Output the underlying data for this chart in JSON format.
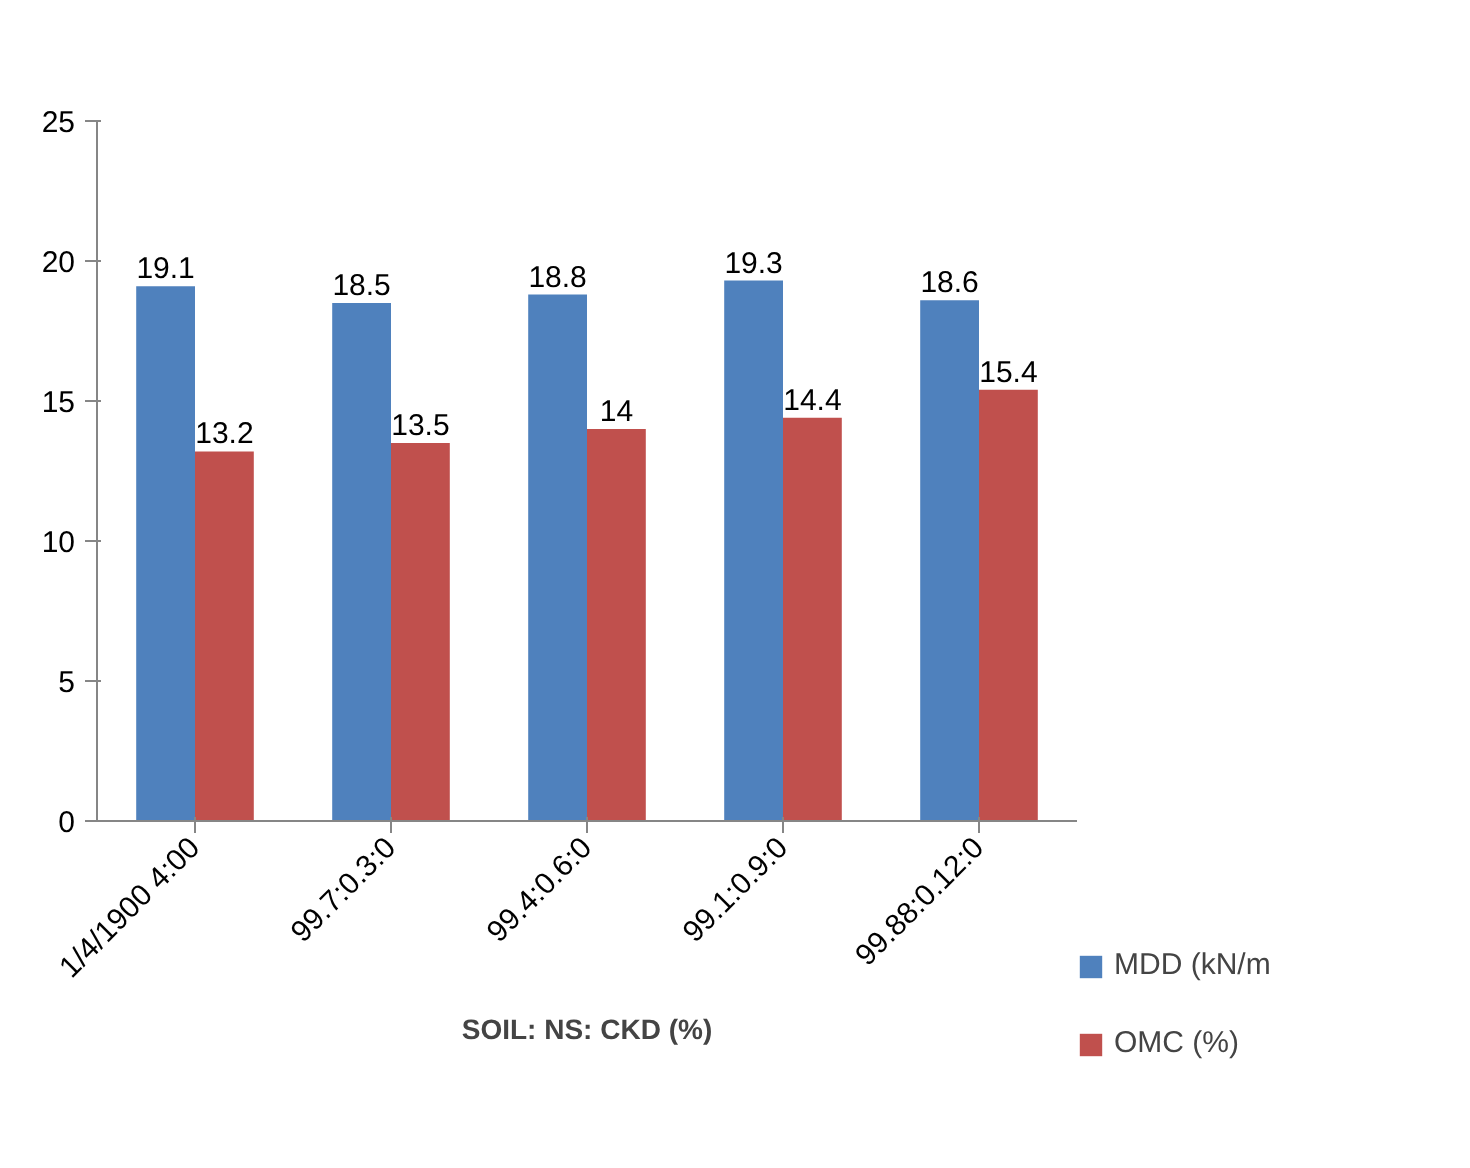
{
  "chart_data": {
    "type": "bar",
    "xlabel": "SOIL: NS: CKD (%)",
    "categories": [
      "1/4/1900 4:00",
      "99.7:0.3:0",
      "99.4:0.6:0",
      "99.1:0.9:0",
      "99.88:0.12:0"
    ],
    "series": [
      {
        "name": "MDD (kN/m",
        "color": "#4f81bd",
        "values": [
          19.1,
          18.5,
          18.8,
          19.3,
          18.6
        ]
      },
      {
        "name": "OMC (%)",
        "color": "#c0504d",
        "values": [
          13.2,
          13.5,
          14,
          14.4,
          15.4
        ]
      }
    ],
    "ylim": [
      0,
      25
    ],
    "yticks": [
      0,
      5,
      10,
      15,
      20,
      25
    ],
    "grid": false,
    "legend": "right",
    "data_labels": true
  }
}
